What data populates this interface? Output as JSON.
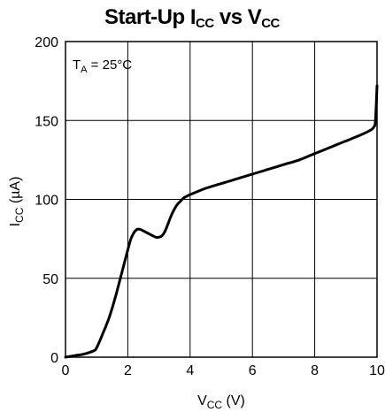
{
  "title": {
    "main": "Start-Up I",
    "sub1": "CC",
    "mid": " vs V",
    "sub2": "CC"
  },
  "chart_data": {
    "type": "line",
    "title": "Start-Up ICC vs VCC",
    "xlabel": {
      "main": "V",
      "sub": "CC",
      "unit": " (V)"
    },
    "ylabel": {
      "main": "I",
      "sub": "CC",
      "unit": " (µA)"
    },
    "annotation": {
      "main": "T",
      "sub": "A",
      "rest": " = 25°C"
    },
    "xlim": [
      0,
      10
    ],
    "ylim": [
      0,
      200
    ],
    "xticks": [
      0,
      2,
      4,
      6,
      8,
      10
    ],
    "yticks": [
      0,
      50,
      100,
      150,
      200
    ],
    "grid": true,
    "series": [
      {
        "x": [
          0,
          0.3,
          0.6,
          0.9,
          1.0,
          1.2,
          1.4,
          1.6,
          1.8,
          2.0,
          2.1,
          2.2,
          2.3,
          2.4,
          2.5,
          2.6,
          2.7,
          2.8,
          2.9,
          3.0,
          3.1,
          3.2,
          3.3,
          3.4,
          3.5,
          3.6,
          3.7,
          3.8,
          3.9,
          4.0,
          4.5,
          5.0,
          5.5,
          6.0,
          6.5,
          7.0,
          7.5,
          8.0,
          8.5,
          9.0,
          9.5,
          9.8,
          9.9,
          9.95,
          10.0
        ],
        "y": [
          0,
          1,
          2,
          4,
          6,
          15,
          25,
          38,
          53,
          68,
          75,
          79,
          81,
          81,
          80,
          79,
          78,
          77,
          76,
          76,
          77,
          80,
          85,
          90,
          94,
          97,
          99,
          101,
          102,
          103,
          107,
          110,
          113,
          116,
          119,
          122,
          125,
          129,
          133,
          137,
          141,
          144,
          146,
          150,
          172
        ]
      }
    ]
  }
}
